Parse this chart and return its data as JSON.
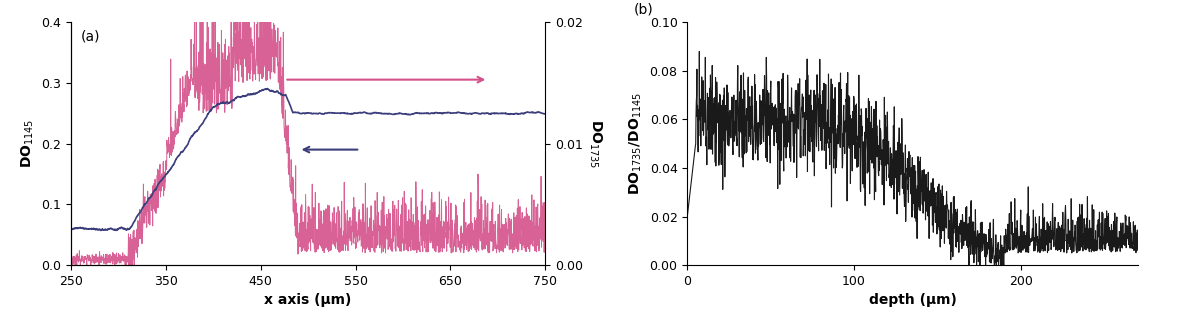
{
  "panel_a": {
    "xlabel": "x axis (μm)",
    "ylabel_left": "DO$_{1145}$",
    "ylabel_right": "DO$_{1735}$",
    "xlim": [
      250,
      750
    ],
    "ylim_left": [
      0,
      0.4
    ],
    "ylim_right": [
      0.0,
      0.02
    ],
    "xticks": [
      250,
      350,
      450,
      550,
      650,
      750
    ],
    "yticks_left": [
      0,
      0.1,
      0.2,
      0.3,
      0.4
    ],
    "yticks_right": [
      0.0,
      0.01,
      0.02
    ],
    "color_pink": "#d4508a",
    "color_blue": "#3b3e7a",
    "label_a": "(a)"
  },
  "panel_b": {
    "xlabel": "depth (μm)",
    "ylabel": "DO$_{1735}$/DO$_{1145}$",
    "xlim": [
      0,
      270
    ],
    "ylim": [
      0.0,
      0.1
    ],
    "xticks": [
      0,
      100,
      200
    ],
    "yticks": [
      0.0,
      0.02,
      0.04,
      0.06,
      0.08,
      0.1
    ],
    "color_line": "#1a1a1a",
    "label_b": "(b)"
  },
  "background_color": "#ffffff"
}
